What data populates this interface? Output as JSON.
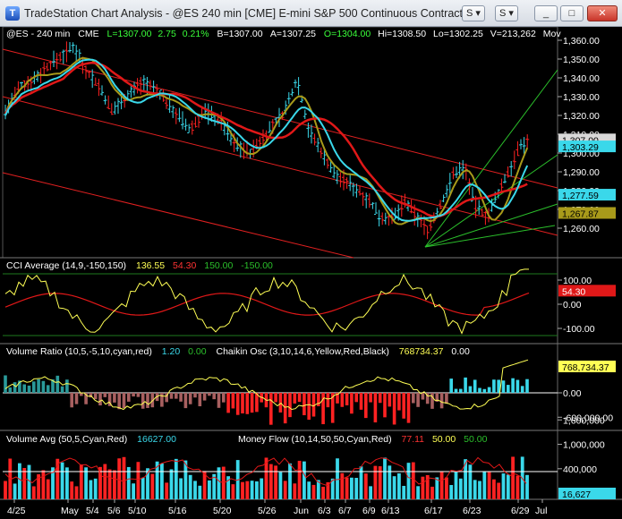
{
  "window": {
    "title": "TradeStation Chart Analysis - @ES 240 min [CME] E-mini S&P 500 Continuous Contract [...",
    "search_btn": "S",
    "pin_btn": "S",
    "minimize": "_",
    "maximize": "□",
    "close": "✕"
  },
  "colors": {
    "cyan": "#3ad8ea",
    "green": "#00d000",
    "red": "#ff2222",
    "yellow": "#ffff55",
    "olive": "#a89a1a",
    "white": "#ffffff",
    "gray": "#8a8a8a",
    "channel": "#e02020",
    "fan": "#2bbf2b"
  },
  "price_panel": {
    "header": {
      "symbol": "@ES - 240 min",
      "exchange": "CME",
      "last": "L=1307.00",
      "change": "2.75",
      "pct": "0.21%",
      "bid": "B=1307.00",
      "ask": "A=1307.25",
      "open": "O=1304.00",
      "high": "Hi=1308.50",
      "low": "Lo=1302.25",
      "volume": "V=213,262",
      "mov": "Mov"
    },
    "axis_ticks": [
      "1,360.00",
      "1,350.00",
      "1,340.00",
      "1,330.00",
      "1,320.00",
      "1,310.00",
      "1,300.00",
      "1,290.00",
      "1,280.00",
      "1,270.00",
      "1,260.00"
    ],
    "axis_tick_values": [
      1360,
      1350,
      1340,
      1330,
      1320,
      1310,
      1300,
      1290,
      1280,
      1270,
      1260
    ],
    "badges": [
      {
        "text": "1,307.00",
        "value": 1307,
        "bg": "#d8d8d8",
        "fg": "#000"
      },
      {
        "text": "1,303.29",
        "value": 1303.29,
        "bg": "#3ad8ea",
        "fg": "#000"
      },
      {
        "text": "1,277.59",
        "value": 1277.59,
        "bg": "#3ad8ea",
        "fg": "#000"
      },
      {
        "text": "1,267.87",
        "value": 1267.87,
        "bg": "#a89a1a",
        "fg": "#000"
      }
    ]
  },
  "cci_panel": {
    "label": "CCI Average (14,9,-150,150)",
    "v1": "136.55",
    "v2": "54.30",
    "v3": "150.00",
    "v4": "-150.00",
    "axis_ticks": [
      "100.00",
      "0.00",
      "-100.00"
    ],
    "axis_tick_values": [
      100,
      0,
      -100
    ],
    "badge": "54.30",
    "badge_value": 54.3
  },
  "vr_panel": {
    "label": "Volume Ratio (10,5,-5,10,cyan,red)",
    "v1": "1.20",
    "v2": "0.00",
    "label2": "Chaikin Osc (3,10,14,6,Yellow,Red,Black)",
    "v3": "768734.37",
    "v4": "0.00",
    "axis_ticks": [
      "0.00",
      "-600,000.00"
    ],
    "axis_tick_values": [
      0,
      -600000
    ],
    "badge": "768,734.37",
    "badge_value": 768734.37
  },
  "va_panel": {
    "label": "Volume Avg (50,5,Cyan,Red)",
    "v1": "16627.00",
    "label2": "Money Flow (10,14,50,50,Cyan,Red)",
    "v2": "77.11",
    "v3": "50.00",
    "v4": "50.00",
    "axis_ticks": [
      "1,600,000",
      "1,000,000",
      "400,000"
    ],
    "axis_tick_values": [
      1600000,
      1000000,
      400000
    ],
    "badge": "16,627",
    "badge_value": 16627
  },
  "x_axis": {
    "labels": [
      "4/25",
      "May",
      "5/4",
      "5/6",
      "5/10",
      "5/16",
      "5/20",
      "5/26",
      "Jun",
      "6/3",
      "6/7",
      "6/9",
      "6/13",
      "6/17",
      "6/23",
      "6/29",
      "Jul"
    ]
  }
}
